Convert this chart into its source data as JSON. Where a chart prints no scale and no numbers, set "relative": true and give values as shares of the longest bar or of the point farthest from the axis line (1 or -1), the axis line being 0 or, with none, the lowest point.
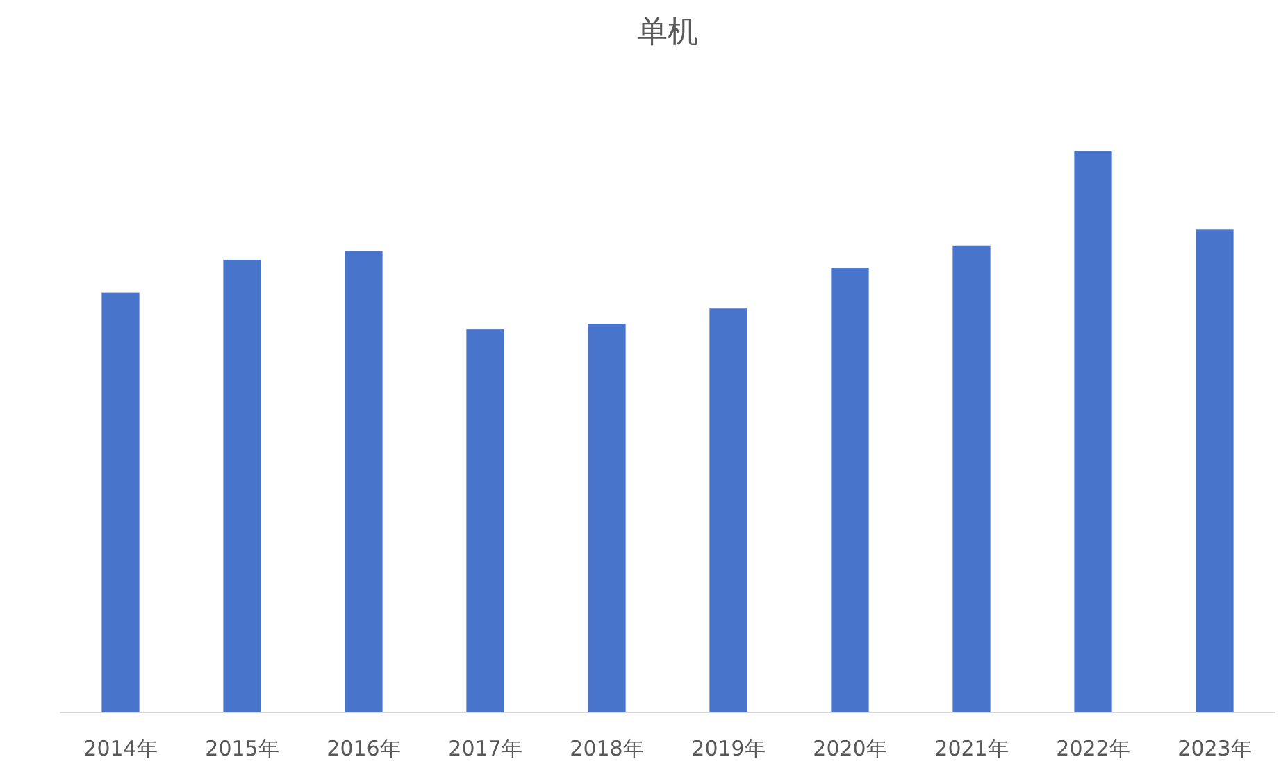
{
  "chart_data": {
    "type": "bar",
    "title": "单机",
    "relative": true,
    "color": "#4874cb",
    "categories": [
      "2014年",
      "2015年",
      "2016年",
      "2017年",
      "2018年",
      "2019年",
      "2020年",
      "2021年",
      "2022年",
      "2023年"
    ],
    "values": [
      0.748,
      0.807,
      0.822,
      0.683,
      0.693,
      0.72,
      0.792,
      0.832,
      1,
      0.861
    ]
  }
}
